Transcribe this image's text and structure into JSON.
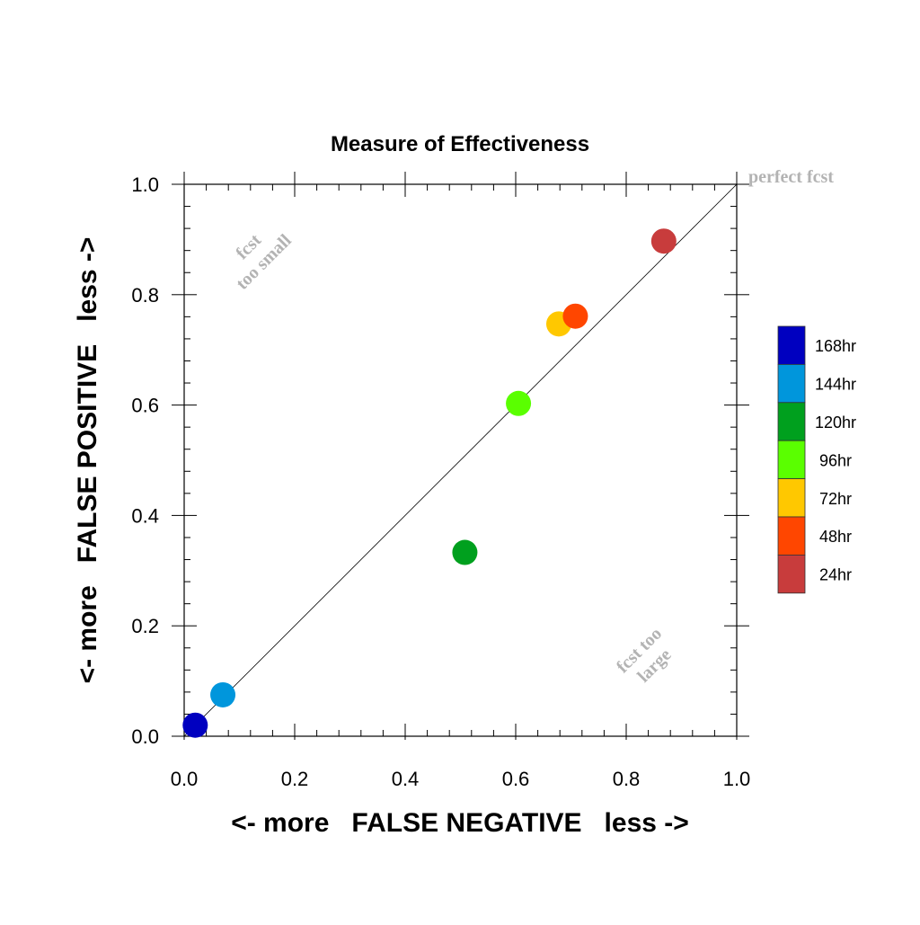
{
  "chart_data": {
    "type": "scatter",
    "title": "Measure of Effectiveness",
    "xlabel": "<- more   FALSE NEGATIVE   less ->",
    "ylabel": "<- more   FALSE POSITIVE   less ->",
    "xlim": [
      0.0,
      1.0
    ],
    "ylim": [
      0.0,
      1.0
    ],
    "xticks": [
      "0.0",
      "0.2",
      "0.4",
      "0.6",
      "0.8",
      "1.0"
    ],
    "yticks": [
      "0.0",
      "0.2",
      "0.4",
      "0.6",
      "0.8",
      "1.0"
    ],
    "grid": false,
    "diagonal_line": true,
    "annotations": {
      "perfect": "perfect fcst",
      "small_line1": "fcst",
      "small_line2": "too small",
      "large_line1": "fcst too",
      "large_line2": "large"
    },
    "legend_position": "right",
    "series": [
      {
        "name": "168hr",
        "color": "#0000c0",
        "x": 0.02,
        "y": 0.02
      },
      {
        "name": "144hr",
        "color": "#0096dc",
        "x": 0.07,
        "y": 0.075
      },
      {
        "name": "120hr",
        "color": "#00a01e",
        "x": 0.508,
        "y": 0.333
      },
      {
        "name": "96hr",
        "color": "#5aff00",
        "x": 0.605,
        "y": 0.603
      },
      {
        "name": "72hr",
        "color": "#ffc800",
        "x": 0.678,
        "y": 0.747
      },
      {
        "name": "48hr",
        "color": "#ff4600",
        "x": 0.708,
        "y": 0.761
      },
      {
        "name": "24hr",
        "color": "#c83c3c",
        "x": 0.868,
        "y": 0.897
      }
    ]
  }
}
